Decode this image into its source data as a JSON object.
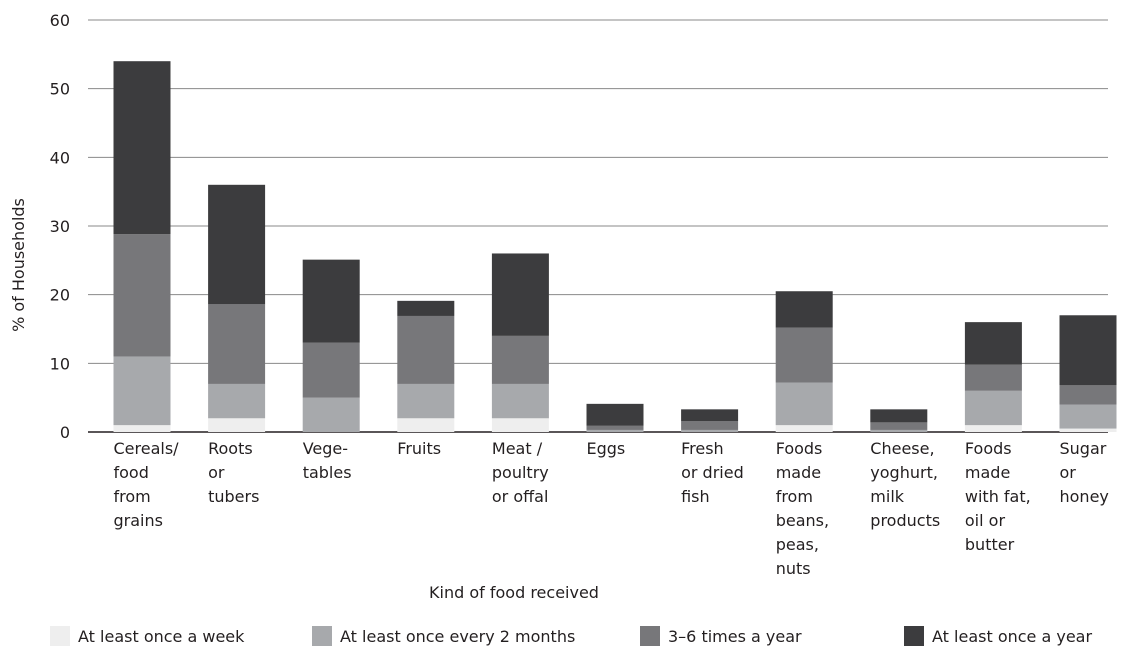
{
  "chart_data": {
    "type": "bar",
    "stacked": true,
    "title": "",
    "xlabel": "Kind of food received",
    "ylabel": "% of Households",
    "ylim": [
      0,
      60
    ],
    "yticks": [
      0,
      10,
      20,
      30,
      40,
      50,
      60
    ],
    "grid": true,
    "legend_position": "bottom",
    "categories": [
      [
        "Cereals/",
        "food",
        "from",
        "grains"
      ],
      [
        "Roots",
        "or",
        "tubers"
      ],
      [
        "Vege-",
        "tables"
      ],
      [
        "Fruits"
      ],
      [
        "Meat /",
        "poultry",
        "or offal"
      ],
      [
        "Eggs"
      ],
      [
        "Fresh",
        "or dried",
        "fish"
      ],
      [
        "Foods",
        "made",
        "from",
        "beans,",
        "peas,",
        "nuts"
      ],
      [
        "Cheese,",
        "yoghurt,",
        "milk",
        "products"
      ],
      [
        "Foods",
        "made",
        "with fat,",
        "oil or",
        "butter"
      ],
      [
        "Sugar",
        "or",
        "honey"
      ]
    ],
    "series": [
      {
        "name": "At least once a week",
        "color": "#eeeeee",
        "values": [
          1,
          2,
          0,
          2,
          2,
          0,
          0,
          1,
          0,
          1,
          0.5
        ]
      },
      {
        "name": "At least once every 2 months",
        "color": "#a7a9ac",
        "values": [
          10,
          5,
          5,
          5,
          5,
          0.3,
          0.3,
          6.2,
          0.3,
          5,
          3.5
        ]
      },
      {
        "name": "3–6 times a year",
        "color": "#77777a",
        "values": [
          17.8,
          11.6,
          8,
          9.9,
          7,
          0.6,
          1.3,
          8,
          1.1,
          3.8,
          2.8
        ]
      },
      {
        "name": "At least once a year",
        "color": "#3c3c3e",
        "values": [
          25.2,
          17.4,
          12.1,
          2.2,
          12,
          3.2,
          1.7,
          5.3,
          1.9,
          6.2,
          10.2
        ]
      }
    ]
  }
}
